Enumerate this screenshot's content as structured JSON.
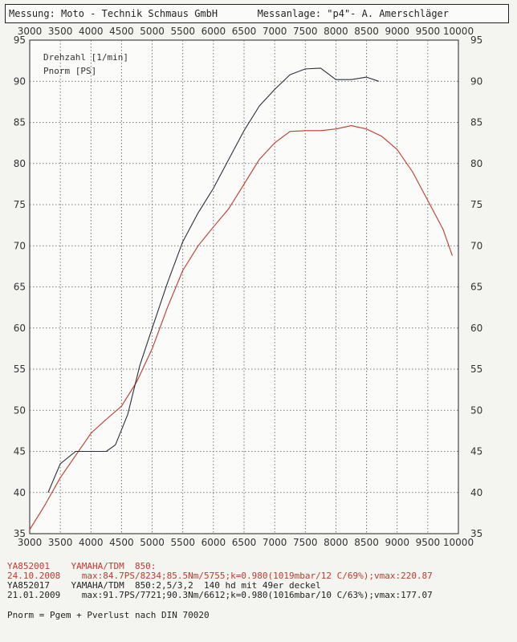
{
  "header": {
    "left": "Messung: Moto - Technik Schmaus GmbH",
    "right": "Messanlage: \"p4\"- A. Amerschläger"
  },
  "colors": {
    "series1": "#c0392b",
    "series2": "#2a2f3a",
    "grid": "#555555",
    "background": "#f4f4f1"
  },
  "footer": {
    "run1_line1": "YA852001    YAMAHA/TDM  850:",
    "run1_line2": "24.10.2008    max:84.7PS/8234;85.5Nm/5755;k=0.980(1019mbar/12 C/69%);vmax:220.87",
    "run2_line1": "YA852017    YAMAHA/TDM  850:2,5/3,2  140 hd mit 49er deckel",
    "run2_line2": "21.01.2009    max:91.7PS/7721;90.3Nm/6612;k=0.980(1016mbar/10 C/63%);vmax:177.07",
    "note": "Pnorm = Pgem + Pverlust nach DIN 70020"
  },
  "chart_data": {
    "type": "line",
    "legend": [
      "Drehzahl [1/min]",
      "Pnorm [PS]"
    ],
    "legend_placement": "top-left",
    "grid": true,
    "xlim": [
      3000,
      10000
    ],
    "ylim": [
      35,
      95
    ],
    "x_ticks": [
      3000,
      3500,
      4000,
      4500,
      5000,
      5500,
      6000,
      6500,
      7000,
      7500,
      8000,
      8500,
      9000,
      9500,
      10000
    ],
    "y_ticks": [
      35,
      40,
      45,
      50,
      55,
      60,
      65,
      70,
      75,
      80,
      85,
      90,
      95
    ],
    "series": [
      {
        "color": "#c0392b",
        "x": [
          3000,
          3250,
          3500,
          3750,
          4000,
          4250,
          4500,
          4750,
          5000,
          5250,
          5500,
          5750,
          6000,
          6250,
          6500,
          6750,
          7000,
          7250,
          7500,
          7750,
          8000,
          8250,
          8500,
          8750,
          9000,
          9250,
          9500,
          9750,
          9900
        ],
        "y": [
          35.5,
          38.5,
          41.8,
          44.5,
          47.2,
          48.9,
          50.5,
          53.5,
          57.5,
          62.5,
          67.0,
          70.0,
          72.3,
          74.5,
          77.5,
          80.5,
          82.5,
          83.9,
          84.0,
          84.0,
          84.2,
          84.6,
          84.2,
          83.3,
          81.7,
          79.0,
          75.5,
          72.0,
          68.8
        ]
      },
      {
        "color": "#2a2f3a",
        "x": [
          3300,
          3500,
          3750,
          4000,
          4250,
          4400,
          4600,
          4800,
          5000,
          5250,
          5500,
          5750,
          6000,
          6250,
          6500,
          6750,
          7000,
          7250,
          7500,
          7750,
          8000,
          8250,
          8500,
          8700
        ],
        "y": [
          40.0,
          43.5,
          45.0,
          45.0,
          45.0,
          45.8,
          49.5,
          55.5,
          60.0,
          65.5,
          70.5,
          74.0,
          77.0,
          80.5,
          84.0,
          87.0,
          89.0,
          90.8,
          91.5,
          91.6,
          90.2,
          90.2,
          90.5,
          90.0
        ]
      }
    ]
  }
}
